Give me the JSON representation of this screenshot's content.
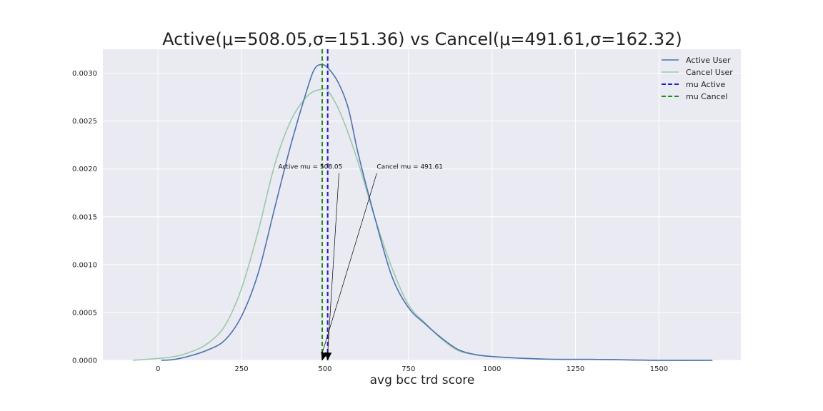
{
  "chart_data": {
    "type": "line",
    "title": "Active(μ=508.05,σ=151.36) vs Cancel(μ=491.61,σ=162.32)",
    "xlabel": "avg bcc trd score",
    "ylabel": "",
    "xlim": [
      -165,
      1745
    ],
    "ylim": [
      0,
      0.00325
    ],
    "xticks": [
      0,
      250,
      500,
      750,
      1000,
      1250,
      1500
    ],
    "xtick_labels": [
      "0",
      "250",
      "500",
      "750",
      "1000",
      "1250",
      "1500"
    ],
    "yticks": [
      0,
      0.0005,
      0.001,
      0.0015,
      0.002,
      0.0025,
      0.003
    ],
    "ytick_labels": [
      "0.0000",
      "0.0005",
      "0.0010",
      "0.0015",
      "0.0020",
      "0.0025",
      "0.0030"
    ],
    "grid": true,
    "background": "#eaeaf2",
    "legend_position": "top-right",
    "series": [
      {
        "name": "Active User",
        "color": "#4c72b0",
        "x": [
          10,
          50,
          100,
          150,
          200,
          250,
          300,
          350,
          400,
          450,
          470,
          490,
          510,
          540,
          570,
          600,
          650,
          700,
          750,
          800,
          850,
          900,
          950,
          1000,
          1100,
          1200,
          1300,
          1400,
          1500,
          1660
        ],
        "y": [
          0.0,
          1e-05,
          5e-05,
          0.00011,
          0.00021,
          0.00046,
          0.00091,
          0.0016,
          0.00228,
          0.00287,
          0.00305,
          0.00309,
          0.00305,
          0.0029,
          0.00263,
          0.00215,
          0.00148,
          0.00088,
          0.00055,
          0.00038,
          0.00023,
          0.00011,
          6e-05,
          4e-05,
          2e-05,
          1e-05,
          1e-05,
          5e-06,
          0.0,
          0.0
        ]
      },
      {
        "name": "Cancel User",
        "color": "#9bc9a7",
        "x": [
          -75,
          0,
          50,
          100,
          150,
          200,
          250,
          300,
          350,
          400,
          450,
          490,
          510,
          550,
          600,
          650,
          700,
          750,
          800,
          850,
          900,
          950,
          1000,
          1100,
          1200,
          1300,
          1400,
          1500,
          1660
        ],
        "y": [
          0.0,
          2e-05,
          4e-05,
          9e-05,
          0.00018,
          0.00036,
          0.00075,
          0.00135,
          0.00205,
          0.00252,
          0.00277,
          0.00283,
          0.00281,
          0.00255,
          0.00206,
          0.00148,
          0.00097,
          0.00058,
          0.00039,
          0.00022,
          0.0001,
          6e-05,
          4e-05,
          2e-05,
          1e-05,
          1e-05,
          5e-06,
          0.0,
          0.0
        ]
      }
    ],
    "vlines": [
      {
        "name": "mu Active",
        "x": 508.05,
        "color": "#1f1fd0",
        "style": "dashed"
      },
      {
        "name": "mu Cancel",
        "x": 491.61,
        "color": "#1e8c1e",
        "style": "dashed"
      }
    ],
    "annotations": [
      {
        "text": "Active mu = 508.05",
        "text_x": 360,
        "text_y": 0.002,
        "arrow_x": 508.05,
        "arrow_y": 0
      },
      {
        "text": "Cancel mu = 491.61",
        "text_x": 655,
        "text_y": 0.002,
        "arrow_x": 491.61,
        "arrow_y": 0
      }
    ]
  }
}
